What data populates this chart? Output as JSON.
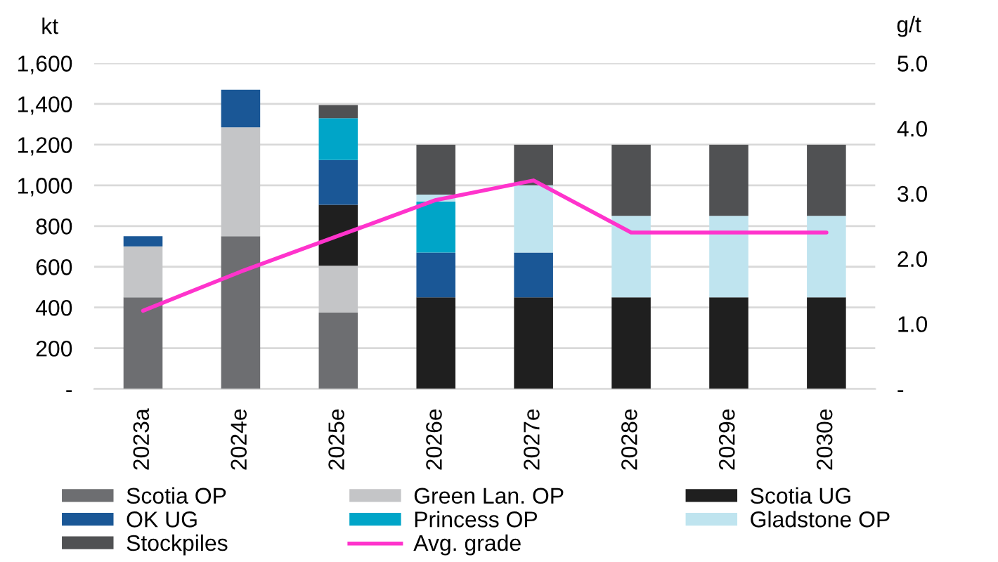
{
  "chart_data": {
    "type": "bar",
    "stacked": true,
    "categories": [
      "2023a",
      "2024e",
      "2025e",
      "2026e",
      "2027e",
      "2028e",
      "2029e",
      "2030e"
    ],
    "series": [
      {
        "name": "Scotia OP",
        "color": "#6d6e71",
        "values": [
          450,
          750,
          375,
          null,
          null,
          null,
          null,
          null
        ]
      },
      {
        "name": "Green Lan. OP",
        "color": "#c4c5c7",
        "values": [
          250,
          535,
          230,
          null,
          null,
          null,
          null,
          null
        ]
      },
      {
        "name": "Scotia UG",
        "color": "#1f1f1f",
        "values": [
          null,
          null,
          300,
          450,
          450,
          450,
          450,
          450
        ]
      },
      {
        "name": "OK UG",
        "color": "#1a5796",
        "values": [
          50,
          185,
          220,
          220,
          220,
          null,
          null,
          null
        ]
      },
      {
        "name": "Princess OP",
        "color": "#00a5c8",
        "values": [
          null,
          null,
          205,
          250,
          null,
          null,
          null,
          null
        ]
      },
      {
        "name": "Gladstone OP",
        "color": "#bfe4ef",
        "values": [
          null,
          null,
          null,
          35,
          330,
          400,
          400,
          400
        ]
      },
      {
        "name": "Stockpiles",
        "color": "#505153",
        "values": [
          null,
          null,
          65,
          245,
          200,
          350,
          350,
          350
        ]
      },
      {
        "name": "Avg. grade",
        "type": "line",
        "axis": "y2",
        "color": "#ff33cc",
        "values": [
          1.2,
          1.8,
          2.35,
          2.9,
          3.2,
          2.4,
          2.4,
          2.4
        ]
      }
    ],
    "ylabel": "kt",
    "y2label": "g/t",
    "ylim": [
      0,
      1600
    ],
    "yticks": [
      {
        "value": 0,
        "label": "-"
      },
      {
        "value": 200,
        "label": "200"
      },
      {
        "value": 400,
        "label": "400"
      },
      {
        "value": 600,
        "label": "600"
      },
      {
        "value": 800,
        "label": "800"
      },
      {
        "value": 1000,
        "label": "1,000"
      },
      {
        "value": 1200,
        "label": "1,200"
      },
      {
        "value": 1400,
        "label": "1,400"
      },
      {
        "value": 1600,
        "label": "1,600"
      }
    ],
    "y2lim": [
      0,
      5
    ],
    "y2ticks": [
      {
        "value": 0,
        "label": "-"
      },
      {
        "value": 1,
        "label": "1.0"
      },
      {
        "value": 2,
        "label": "2.0"
      },
      {
        "value": 3,
        "label": "3.0"
      },
      {
        "value": 4,
        "label": "4.0"
      },
      {
        "value": 5,
        "label": "5.0"
      }
    ],
    "grid": "y",
    "legend": "bottom"
  }
}
